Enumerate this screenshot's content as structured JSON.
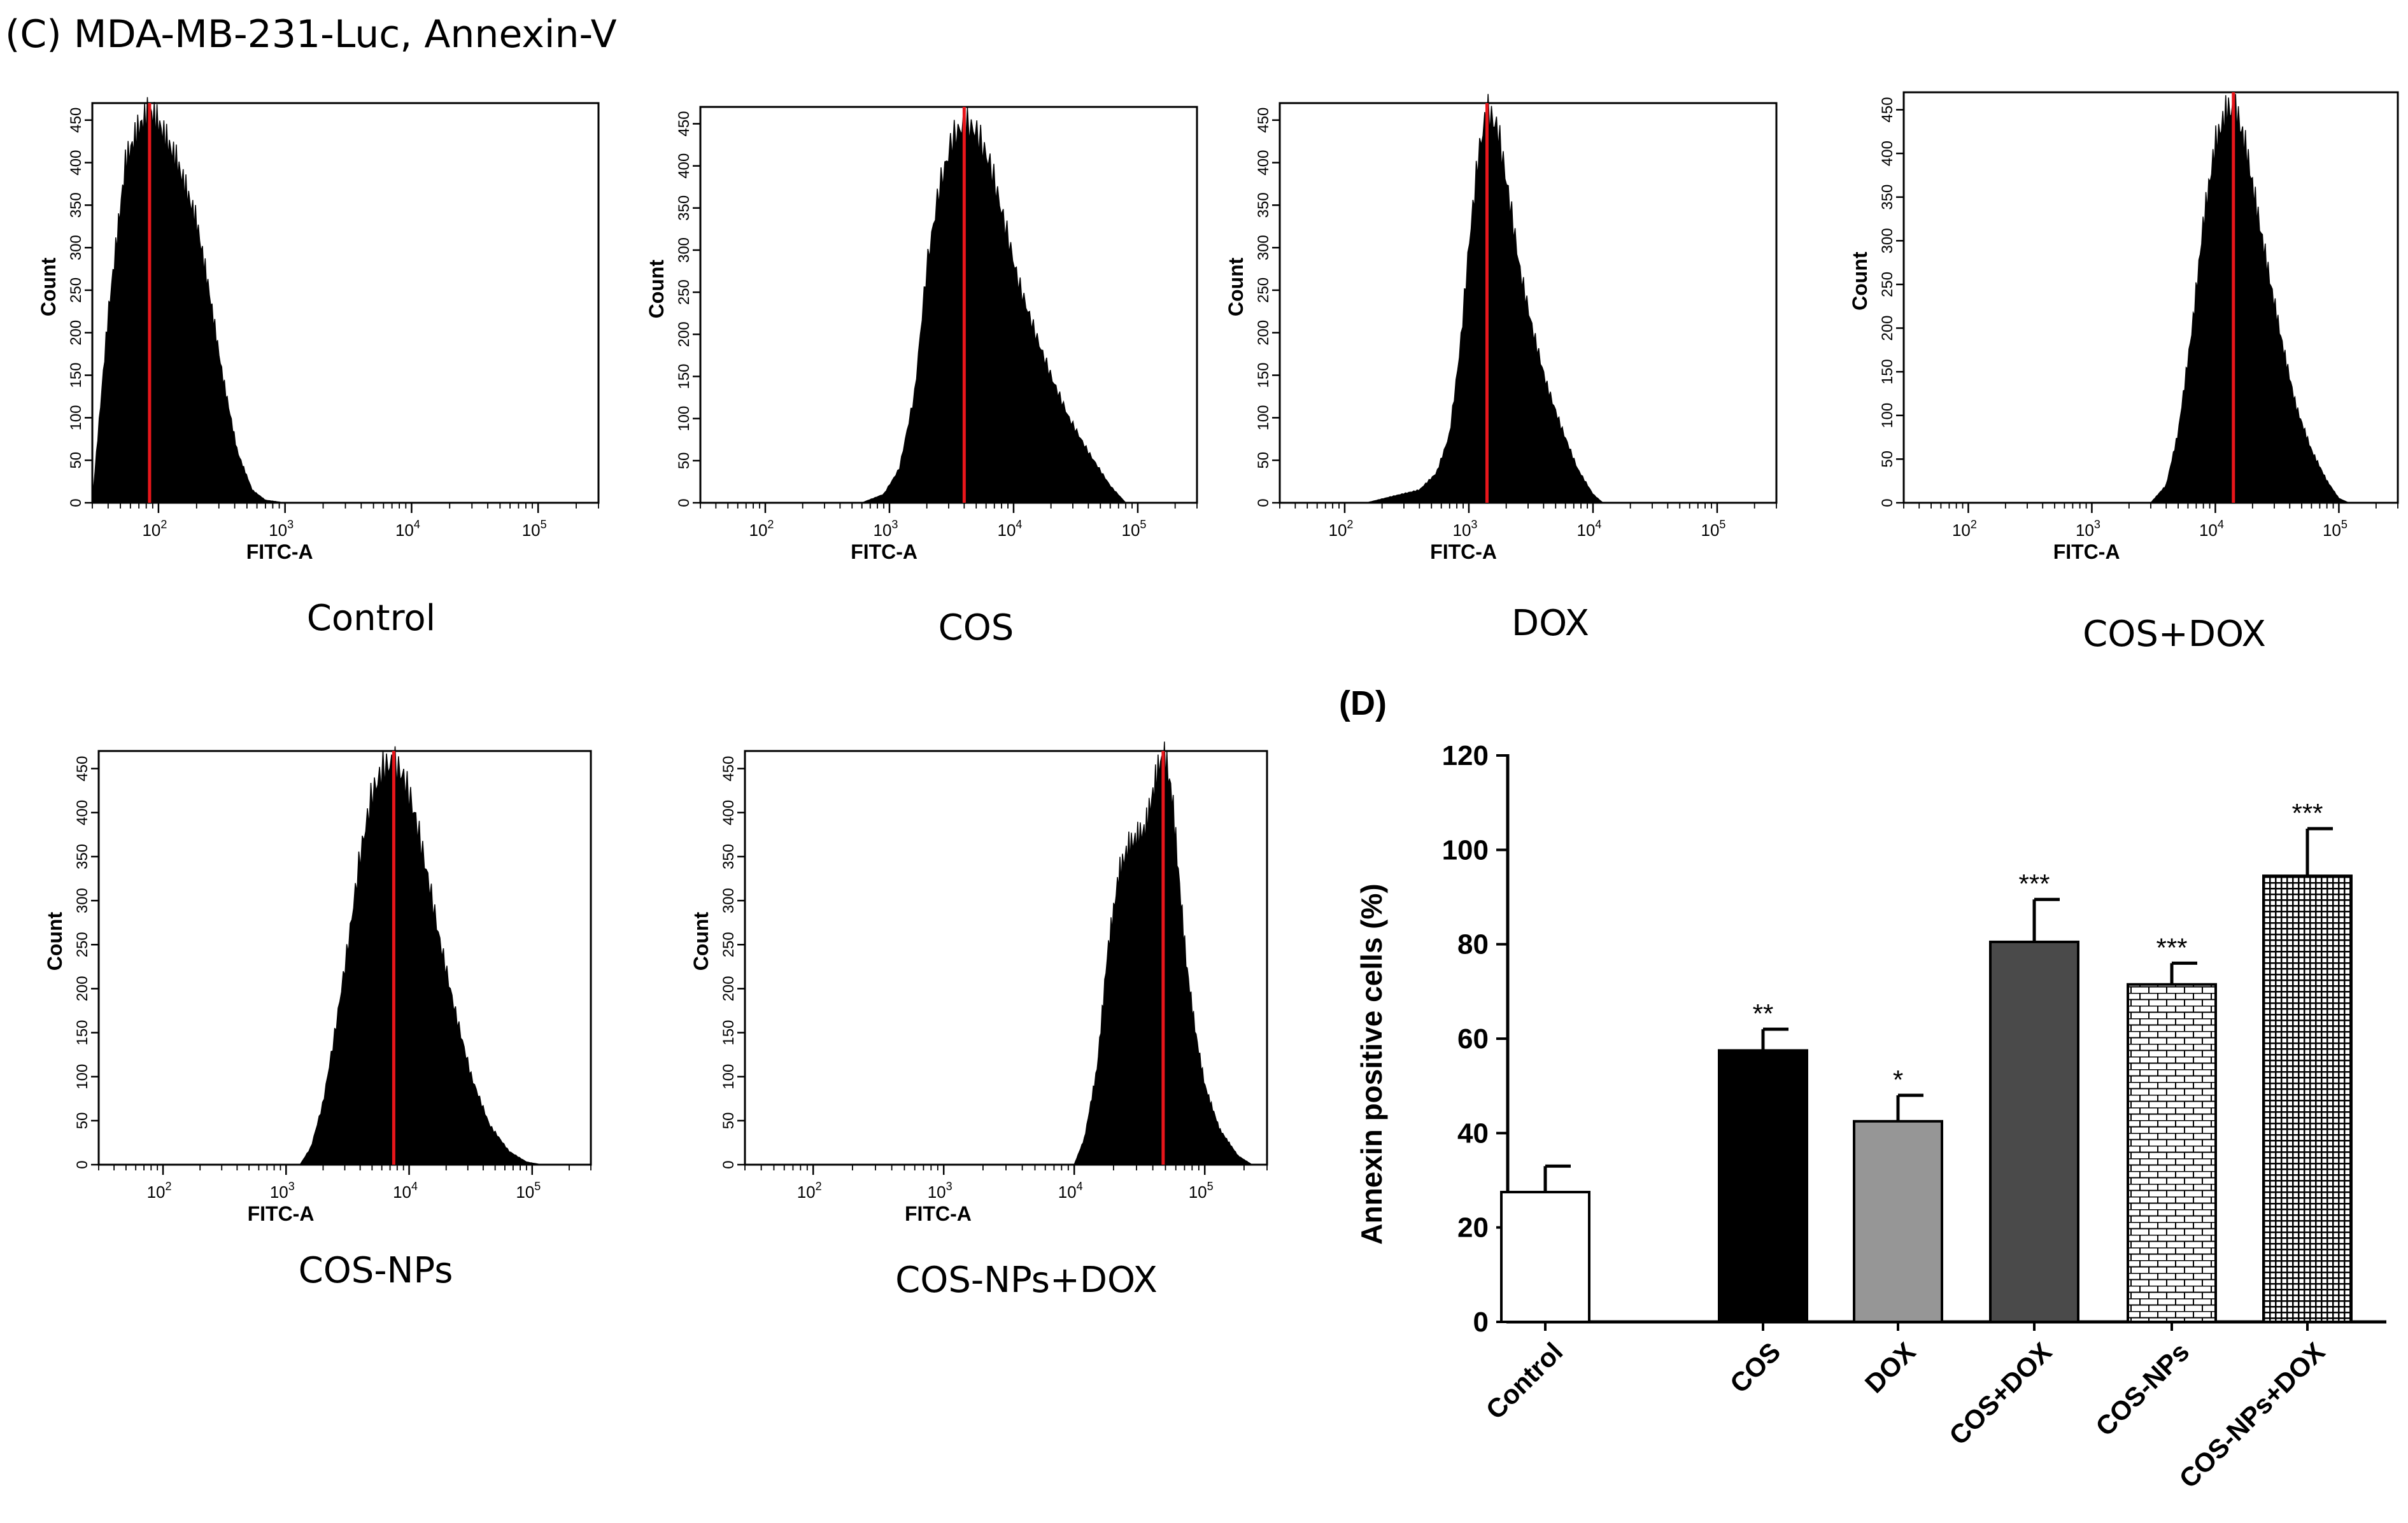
{
  "figure": {
    "title_c": "(C) MDA-MB-231-Luc, Annexin-V",
    "title_d": "(D)"
  },
  "colors": {
    "histogram_fill": "#000000",
    "median_line": "#e8161b",
    "axis": "#000000"
  },
  "chart_data": [
    {
      "type": "area",
      "panel": "Control",
      "label": "Control",
      "xlabel": "FITC-A",
      "ylabel": "Count",
      "x_scale": "log",
      "xlim": [
        30,
        300000
      ],
      "ylim": [
        0,
        470
      ],
      "x_ticks": [
        "10^2",
        "10^3",
        "10^4",
        "10^5"
      ],
      "y_ticks": [
        "0",
        "50",
        "100",
        "150",
        "200",
        "250",
        "300",
        "350",
        "400",
        "450"
      ],
      "median_x": 85,
      "x": [
        30,
        40,
        55,
        70,
        85,
        100,
        140,
        200,
        250,
        320,
        420,
        550,
        700,
        1000
      ],
      "y": [
        0,
        220,
        400,
        440,
        460,
        445,
        400,
        330,
        250,
        150,
        60,
        15,
        3,
        0
      ]
    },
    {
      "type": "area",
      "panel": "COS",
      "label": "COS",
      "xlabel": "FITC-A",
      "ylabel": "Count",
      "x_scale": "log",
      "xlim": [
        30,
        300000
      ],
      "ylim": [
        0,
        470
      ],
      "x_ticks": [
        "10^2",
        "10^3",
        "10^4",
        "10^5"
      ],
      "y_ticks": [
        "0",
        "50",
        "100",
        "150",
        "200",
        "250",
        "300",
        "350",
        "400",
        "450"
      ],
      "median_x": 4000,
      "x": [
        600,
        900,
        1200,
        1600,
        2000,
        2500,
        3200,
        4000,
        5000,
        6500,
        8500,
        11000,
        15000,
        20000,
        28000,
        40000,
        60000,
        80000
      ],
      "y": [
        0,
        10,
        40,
        130,
        280,
        370,
        430,
        450,
        440,
        400,
        330,
        260,
        200,
        150,
        100,
        60,
        20,
        0
      ]
    },
    {
      "type": "area",
      "panel": "DOX",
      "label": "DOX",
      "xlabel": "FITC-A",
      "ylabel": "Count",
      "x_scale": "log",
      "xlim": [
        30,
        300000
      ],
      "ylim": [
        0,
        470
      ],
      "x_ticks": [
        "10^2",
        "10^3",
        "10^4",
        "10^5"
      ],
      "y_ticks": [
        "0",
        "50",
        "100",
        "150",
        "200",
        "250",
        "300",
        "350",
        "400",
        "450"
      ],
      "median_x": 1400,
      "x": [
        150,
        250,
        400,
        550,
        700,
        850,
        1000,
        1200,
        1400,
        1700,
        2100,
        2600,
        3300,
        4200,
        5500,
        7500,
        10000,
        12000
      ],
      "y": [
        0,
        8,
        15,
        35,
        80,
        180,
        300,
        410,
        460,
        440,
        360,
        270,
        200,
        140,
        90,
        40,
        10,
        0
      ]
    },
    {
      "type": "area",
      "panel": "COS+DOX",
      "label": "COS+DOX",
      "xlabel": "FITC-A",
      "ylabel": "Count",
      "x_scale": "log",
      "xlim": [
        30,
        300000
      ],
      "ylim": [
        0,
        470
      ],
      "x_ticks": [
        "10^2",
        "10^3",
        "10^4",
        "10^5"
      ],
      "y_ticks": [
        "0",
        "50",
        "100",
        "150",
        "200",
        "250",
        "300",
        "350",
        "400",
        "450"
      ],
      "median_x": 14000,
      "x": [
        3000,
        4000,
        5000,
        6500,
        8000,
        10000,
        12500,
        15000,
        18000,
        22000,
        28000,
        35000,
        45000,
        60000,
        80000,
        100000,
        120000
      ],
      "y": [
        0,
        20,
        80,
        200,
        320,
        410,
        450,
        445,
        400,
        330,
        250,
        180,
        110,
        60,
        25,
        5,
        0
      ]
    },
    {
      "type": "area",
      "panel": "COS-NPs",
      "label": "COS-NPs",
      "xlabel": "FITC-A",
      "ylabel": "Count",
      "x_scale": "log",
      "xlim": [
        30,
        300000
      ],
      "ylim": [
        0,
        470
      ],
      "x_ticks": [
        "10^2",
        "10^3",
        "10^4",
        "10^5"
      ],
      "y_ticks": [
        "0",
        "50",
        "100",
        "150",
        "200",
        "250",
        "300",
        "350",
        "400",
        "450"
      ],
      "median_x": 7500,
      "x": [
        1300,
        1600,
        2000,
        2500,
        3200,
        4000,
        5000,
        6200,
        7500,
        9000,
        11000,
        14000,
        18000,
        24000,
        32000,
        45000,
        65000,
        90000,
        120000
      ],
      "y": [
        0,
        20,
        70,
        150,
        250,
        350,
        420,
        450,
        455,
        440,
        400,
        330,
        250,
        170,
        100,
        45,
        15,
        3,
        0
      ]
    },
    {
      "type": "area",
      "panel": "COS-NPs+DOX",
      "label": "COS-NPs+DOX",
      "xlabel": "FITC-A",
      "ylabel": "Count",
      "x_scale": "log",
      "xlim": [
        30,
        300000
      ],
      "ylim": [
        0,
        470
      ],
      "x_ticks": [
        "10^2",
        "10^3",
        "10^4",
        "10^5"
      ],
      "y_ticks": [
        "0",
        "50",
        "100",
        "150",
        "200",
        "250",
        "300",
        "350",
        "400",
        "450"
      ],
      "median_x": 48000,
      "x": [
        10000,
        12000,
        15000,
        18000,
        22000,
        26000,
        30000,
        35000,
        40000,
        45000,
        50000,
        56000,
        63000,
        72000,
        85000,
        100000,
        130000,
        180000,
        230000
      ],
      "y": [
        0,
        30,
        110,
        240,
        330,
        360,
        370,
        380,
        420,
        455,
        460,
        420,
        330,
        230,
        150,
        90,
        40,
        10,
        0
      ]
    },
    {
      "type": "bar",
      "panel": "D",
      "categories": [
        "Control",
        "COS",
        "DOX",
        "COS+DOX",
        "COS-NPs",
        "COS-NPs+DOX"
      ],
      "values": [
        27.5,
        57.5,
        42.5,
        80.5,
        71.5,
        94.5
      ],
      "errors": [
        5.5,
        4.5,
        5.5,
        9.0,
        4.5,
        10.0
      ],
      "significance": [
        "",
        "**",
        "*",
        "***",
        "***",
        "***"
      ],
      "fills": [
        "white",
        "black",
        "gray",
        "darkgray",
        "brick",
        "grid"
      ],
      "ylabel": "Annexin positive cells (%)",
      "xlabel": "",
      "ylim": [
        0,
        120
      ],
      "y_ticks": [
        "0",
        "20",
        "40",
        "60",
        "80",
        "100",
        "120"
      ]
    }
  ]
}
